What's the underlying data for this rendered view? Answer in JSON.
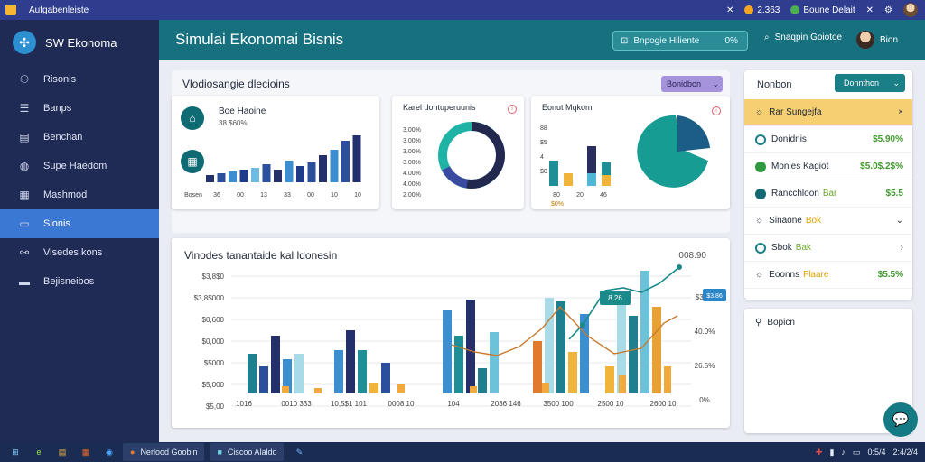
{
  "os_bar": {
    "title": "Aufgabenleiste",
    "icons": [
      "close-icon",
      "location-icon",
      "shield-icon",
      "bell-icon"
    ],
    "location_label": "2.363",
    "status_label": "Boune Delait"
  },
  "sidebar": {
    "brand": "SW Ekonoma",
    "items": [
      {
        "label": "Risonis",
        "icon": "user-icon"
      },
      {
        "label": "Banps",
        "icon": "stack-icon"
      },
      {
        "label": "Benchan",
        "icon": "chart-icon"
      },
      {
        "label": "Supe Haedom",
        "icon": "globe-icon"
      },
      {
        "label": "Mashmod",
        "icon": "grid-icon"
      },
      {
        "label": "Sionis",
        "icon": "briefcase-icon",
        "active": true
      },
      {
        "label": "Visedes kons",
        "icon": "people-icon"
      },
      {
        "label": "Bejisneibos",
        "icon": "book-icon"
      }
    ]
  },
  "header": {
    "title": "Simulai Ekonomai Bisnis",
    "pill_label": "Bnpogie Hiliente",
    "pill_value": "0%",
    "search_label": "Snaqpin Goiotoe",
    "user_label": "Bion"
  },
  "top_panel": {
    "title": "Vlodiosangie dlecioins",
    "button_label": "Bonidbon"
  },
  "card1": {
    "title": "Boe Haoine",
    "subtitle": "38 $60%",
    "x_labels": [
      "Bosen",
      "36",
      "00",
      "13",
      "33",
      "00",
      "10",
      "10"
    ]
  },
  "card2": {
    "title": "Karel dontuperuunis",
    "y_labels": [
      "3.00%",
      "3.00%",
      "3.00%",
      "3.00%",
      "4.00%",
      "4.00%",
      "2.00%"
    ]
  },
  "card3": {
    "title": "Eonut Mqkom",
    "y_labels": [
      "88",
      "$5",
      "4",
      "$0"
    ],
    "x_labels": [
      "80",
      "20",
      "46"
    ],
    "bottom_label": "$0%"
  },
  "bottom_chart": {
    "title": "Vinodes tanantaide kal ldonesin",
    "top_right": "008.90",
    "y_labels": [
      "$3,8$0",
      "$3,8$000",
      "$0,600",
      "$0,000",
      "$5000",
      "$5,000",
      "$5,00"
    ],
    "y2_labels": [
      "$36%",
      "40.0%",
      "26.5%",
      "0%"
    ],
    "x_labels": [
      "1016",
      "0010 333",
      "10,5$1 101",
      "0008 10",
      "104",
      "2036 146",
      "3500 100",
      "2500 10",
      "2600 10"
    ],
    "tooltip_a": "8.26",
    "tooltip_b": "$3.86"
  },
  "right_panel": {
    "head": "Nonbon",
    "button_label": "Donnthon",
    "rows": [
      {
        "label": "Rar Sungejfa",
        "value": "",
        "icon": "sun-icon",
        "end": "×",
        "highlight": true
      },
      {
        "label": "Donidnis",
        "value": "$5.90%",
        "icon": "ring-icon",
        "end": ""
      },
      {
        "label": "Monles Kagiot",
        "value": "$5.0$.2$%",
        "icon": "dot-green-icon",
        "end": ""
      },
      {
        "label": "Rancchloon",
        "tag": "Bar",
        "value": "$5.5",
        "icon": "dot-teal-icon",
        "end": ""
      },
      {
        "label": "Sinaone",
        "tag": "Bok",
        "value": "",
        "icon": "sun-icon",
        "end": "⌄"
      },
      {
        "label": "Sbok",
        "tag": "Bak",
        "value": "",
        "icon": "ring-icon",
        "end": "›"
      },
      {
        "label": "Eoonns",
        "tag": "Flaare",
        "value": "$5.5%",
        "icon": "sun-icon",
        "end": ""
      }
    ]
  },
  "right_panel2": {
    "title": "Bopicn"
  },
  "taskbar": {
    "tasks": [
      "Nerlood Goobin",
      "Ciscoo Alaldo"
    ],
    "tray_time": "0:5/4",
    "tray_date": "2:4/2/4"
  }
}
